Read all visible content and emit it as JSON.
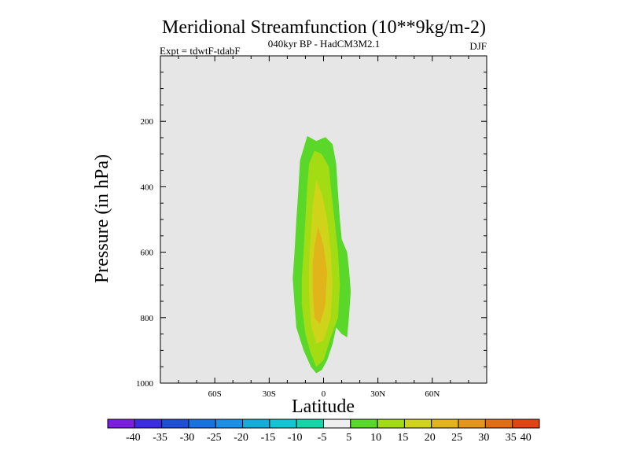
{
  "chart_data": {
    "type": "contour",
    "title": "Meridional Streamfunction (10**9kg/m-2)",
    "subtitle": "040kyr BP - HadCM3M2.1",
    "left_label": "Expt = tdwtF-tdabF",
    "right_label": "DJF",
    "xlabel": "Latitude",
    "ylabel": "Pressure (in hPa)",
    "xlim": [
      -90,
      90
    ],
    "ylim": [
      1000,
      0
    ],
    "xticks": [
      -60,
      -30,
      0,
      30,
      60
    ],
    "xtick_labels": [
      "60S",
      "30S",
      "0",
      "30N",
      "60N"
    ],
    "yticks": [
      200,
      400,
      600,
      800,
      1000
    ],
    "ytick_labels": [
      "200",
      "400",
      "600",
      "800",
      "1000"
    ],
    "background_color": "#e6e6e6",
    "contour_levels": [
      -40,
      -35,
      -30,
      -25,
      -20,
      -15,
      -10,
      -5,
      5,
      10,
      15,
      20,
      25,
      30,
      35,
      40
    ],
    "colorbar_labels": [
      "-40",
      "-35",
      "-30",
      "-25",
      "-20",
      "-15",
      "-10",
      "-5",
      "5",
      "10",
      "15",
      "20",
      "25",
      "30",
      "35",
      "40"
    ],
    "colorbar_colors": [
      "#7c1ee0",
      "#3b2be2",
      "#1f4fd6",
      "#1a72e0",
      "#1a8fe6",
      "#12aed8",
      "#10c6d2",
      "#14d6a8",
      "#eeeeee",
      "#5ad82a",
      "#a4dc14",
      "#cfd41a",
      "#e2b41c",
      "#e2961a",
      "#e26e14",
      "#e24414"
    ],
    "filled_regions": [
      {
        "min_value": 5,
        "color": "#5ad82a",
        "outline": [
          [
            -9,
            245
          ],
          [
            -4,
            260
          ],
          [
            1,
            248
          ],
          [
            5,
            270
          ],
          [
            7,
            330
          ],
          [
            8,
            420
          ],
          [
            9,
            500
          ],
          [
            10,
            560
          ],
          [
            13,
            600
          ],
          [
            14,
            650
          ],
          [
            15,
            720
          ],
          [
            14,
            800
          ],
          [
            13,
            860
          ],
          [
            10,
            850
          ],
          [
            7,
            830
          ],
          [
            5,
            880
          ],
          [
            2,
            930
          ],
          [
            -1,
            960
          ],
          [
            -4,
            970
          ],
          [
            -7,
            950
          ],
          [
            -11,
            900
          ],
          [
            -15,
            830
          ],
          [
            -16,
            760
          ],
          [
            -17,
            680
          ],
          [
            -16,
            600
          ],
          [
            -15,
            500
          ],
          [
            -14,
            420
          ],
          [
            -13,
            320
          ]
        ]
      },
      {
        "min_value": 10,
        "color": "#a4dc14",
        "outline": [
          [
            -5,
            290
          ],
          [
            -1,
            300
          ],
          [
            3,
            340
          ],
          [
            4,
            400
          ],
          [
            6,
            500
          ],
          [
            8,
            600
          ],
          [
            9,
            700
          ],
          [
            8,
            800
          ],
          [
            4,
            860
          ],
          [
            0,
            930
          ],
          [
            -4,
            950
          ],
          [
            -7,
            910
          ],
          [
            -10,
            850
          ],
          [
            -12,
            760
          ],
          [
            -12,
            680
          ],
          [
            -11,
            600
          ],
          [
            -10,
            500
          ],
          [
            -9,
            400
          ],
          [
            -8,
            330
          ]
        ]
      },
      {
        "min_value": 15,
        "color": "#cfd41a",
        "outline": [
          [
            -4,
            380
          ],
          [
            -1,
            420
          ],
          [
            2,
            500
          ],
          [
            4,
            600
          ],
          [
            5,
            700
          ],
          [
            4,
            800
          ],
          [
            0,
            870
          ],
          [
            -4,
            880
          ],
          [
            -7,
            820
          ],
          [
            -8,
            720
          ],
          [
            -8,
            640
          ],
          [
            -7,
            540
          ],
          [
            -6,
            460
          ]
        ]
      },
      {
        "min_value": 20,
        "color": "#e2b41c",
        "outline": [
          [
            -3,
            520
          ],
          [
            0,
            580
          ],
          [
            2,
            660
          ],
          [
            1,
            760
          ],
          [
            -2,
            820
          ],
          [
            -5,
            800
          ],
          [
            -6,
            720
          ],
          [
            -6,
            640
          ],
          [
            -5,
            580
          ]
        ]
      }
    ]
  }
}
